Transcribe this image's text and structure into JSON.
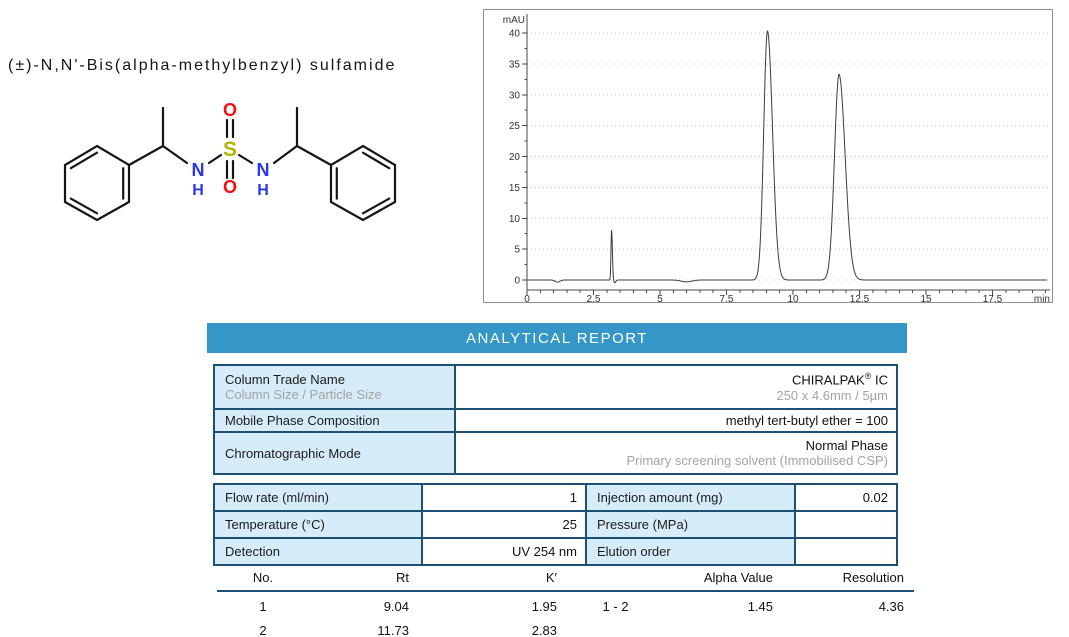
{
  "compound": {
    "name": "(±)-N,N'-Bis(alpha-methylbenzyl) sulfamide"
  },
  "report": {
    "title": "ANALYTICAL REPORT"
  },
  "colors": {
    "accent": "#3596c8",
    "tableBorder": "#1c5074",
    "cellBg": "#d6ecf9",
    "muted": "#a3a3a3",
    "atomN": "#2b36f0",
    "atomS": "#b3b300",
    "atomO": "#f01010",
    "bond": "#151515",
    "trace": "#3c3c3c"
  },
  "structure": {
    "atom_labels": {
      "S": "S",
      "O_top": "O",
      "O_bottom": "O",
      "N_left": "N",
      "H_left": "H",
      "N_right": "N",
      "H_right": "H"
    }
  },
  "chart_data": {
    "type": "line",
    "title": "",
    "xlabel": "min",
    "ylabel": "mAU",
    "xlim": [
      0,
      19.6
    ],
    "ylim": [
      0,
      42
    ],
    "x_ticks": [
      0,
      2.5,
      5,
      7.5,
      10,
      12.5,
      15,
      17.5
    ],
    "x_minor_step": 0.5,
    "y_ticks": [
      0,
      5,
      10,
      15,
      20,
      25,
      30,
      35,
      40
    ],
    "y_minor_step": 2.5,
    "grid": "horizontal-dotted",
    "baseline": 0,
    "series": [
      {
        "name": "UV 254 nm trace",
        "peaks": [
          {
            "rt": 3.18,
            "height": 8.1,
            "sigma_left": 0.022,
            "sigma_right": 0.03
          },
          {
            "rt": 9.04,
            "height": 40.3,
            "sigma_left": 0.14,
            "sigma_right": 0.19
          },
          {
            "rt": 11.73,
            "height": 33.3,
            "sigma_left": 0.17,
            "sigma_right": 0.23
          }
        ]
      }
    ],
    "baseline_dips": [
      {
        "rt": 1.15,
        "depth": -0.35,
        "sigma": 0.09
      },
      {
        "rt": 3.3,
        "depth": -0.45,
        "sigma": 0.04
      },
      {
        "rt": 6.0,
        "depth": -0.3,
        "sigma": 0.2
      }
    ]
  },
  "spec_table": {
    "rows": [
      {
        "label": "Column Trade Name",
        "sublabel": "Column Size / Particle Size",
        "value_main": "CHIRALPAK",
        "value_sup": "®",
        "value_tail": " IC",
        "subvalue": "250 x 4.6mm / 5µm"
      },
      {
        "label": "Mobile Phase Composition",
        "value": "methyl tert-butyl ether = 100"
      },
      {
        "label": "Chromatographic Mode",
        "value": "Normal Phase",
        "subvalue": "Primary screening solvent (Immobilised CSP)"
      }
    ]
  },
  "cond_table": {
    "rows": [
      {
        "l1": "Flow rate (ml/min)",
        "v1": "1",
        "l2": "Injection amount (mg)",
        "v2": "0.02"
      },
      {
        "l1": "Temperature (°C)",
        "v1": "25",
        "l2": "Pressure (MPa)",
        "v2": ""
      },
      {
        "l1": "Detection",
        "v1": "UV 254 nm",
        "l2": "Elution order",
        "v2": ""
      }
    ]
  },
  "results_left": {
    "headers": [
      "No.",
      "Rt",
      "K′"
    ],
    "rows": [
      [
        "1",
        "9.04",
        "1.95"
      ],
      [
        "2",
        "11.73",
        "2.83"
      ]
    ]
  },
  "results_right": {
    "headers": [
      "",
      "Alpha Value",
      "Resolution"
    ],
    "rows": [
      [
        "1 - 2",
        "1.45",
        "4.36"
      ]
    ]
  }
}
